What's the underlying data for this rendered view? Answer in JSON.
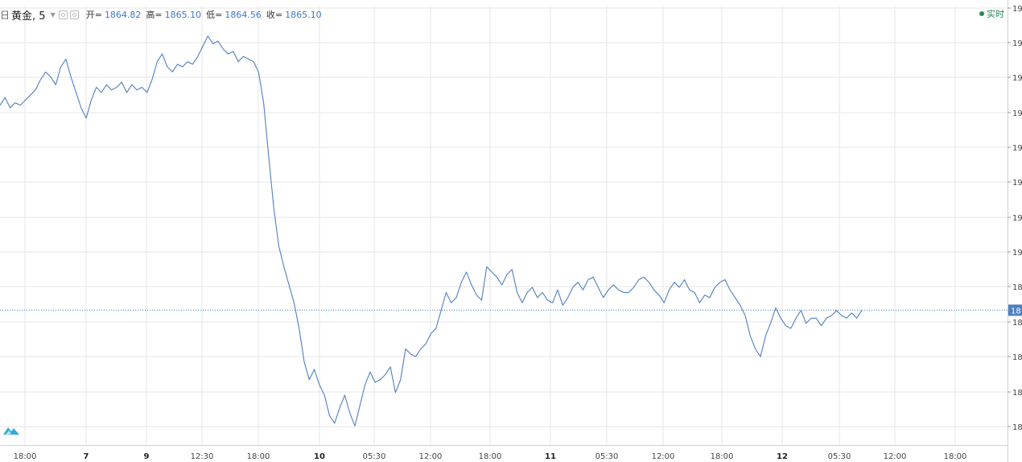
{
  "header": {
    "calendar_icon": "日",
    "symbol": "黄金, 5",
    "open_label": "开=",
    "open_value": "1864.82",
    "high_label": "高=",
    "high_value": "1865.10",
    "low_label": "低=",
    "low_value": "1864.56",
    "close_label": "收=",
    "close_value": "1865.10",
    "realtime_label": "实时"
  },
  "colors": {
    "line": "#4f7fc1",
    "grid": "#e6e6e6",
    "price_line": "#4f7fc1",
    "realtime": "#2a8a55",
    "logo": "#36a9d6"
  },
  "chart_data": {
    "type": "line",
    "x_ticks": [
      "18:00",
      "7",
      "9",
      "12:30",
      "18:00",
      "10",
      "05:30",
      "12:00",
      "18:00",
      "11",
      "05:30",
      "12:00",
      "18:00",
      "12",
      "05:30",
      "12:00",
      "18:00"
    ],
    "bold_ticks": [
      "7",
      "9",
      "10",
      "11",
      "12"
    ],
    "y_axis_tick_labels": [
      "19",
      "19",
      "19",
      "19",
      "19",
      "19",
      "19",
      "19",
      "18",
      "18",
      "18",
      "18",
      "18"
    ],
    "current_price_tag": "18",
    "last_close": 1865.1,
    "series": [
      {
        "values": [
          1945,
          1948,
          1944,
          1946,
          1945,
          1947,
          1949,
          1951,
          1955,
          1958,
          1956,
          1953,
          1960,
          1963,
          1956,
          1950,
          1944,
          1940,
          1947,
          1952,
          1950,
          1953,
          1951,
          1952,
          1954,
          1950,
          1953,
          1951,
          1952,
          1950,
          1955,
          1962,
          1965,
          1960,
          1958,
          1961,
          1960,
          1962,
          1961,
          1964,
          1968,
          1972,
          1969,
          1970,
          1967,
          1965,
          1966,
          1962,
          1964,
          1963,
          1962,
          1958,
          1946,
          1925,
          1905,
          1890,
          1882,
          1875,
          1868,
          1858,
          1845,
          1838,
          1842,
          1836,
          1832,
          1824,
          1821,
          1827,
          1832,
          1825,
          1820,
          1828,
          1836,
          1841,
          1837,
          1838,
          1840,
          1843,
          1833,
          1838,
          1850,
          1848,
          1847,
          1850,
          1852,
          1856,
          1858,
          1865,
          1872,
          1868,
          1870,
          1876,
          1880,
          1875,
          1871,
          1869,
          1882,
          1880,
          1878,
          1875,
          1879,
          1881,
          1872,
          1868,
          1872,
          1874,
          1870,
          1872,
          1869,
          1868,
          1873,
          1867,
          1870,
          1874,
          1876,
          1873,
          1877,
          1878,
          1874,
          1870,
          1873,
          1875,
          1873,
          1872,
          1872,
          1874,
          1877,
          1878,
          1876,
          1873,
          1871,
          1868,
          1873,
          1876,
          1874,
          1877,
          1873,
          1872,
          1868,
          1871,
          1870,
          1874,
          1876,
          1877,
          1873,
          1870,
          1867,
          1863,
          1855,
          1850,
          1847,
          1855,
          1860,
          1866,
          1862,
          1859,
          1858,
          1862,
          1865,
          1860,
          1862,
          1862,
          1859,
          1862,
          1863,
          1865,
          1863,
          1862,
          1864,
          1862,
          1865.1
        ]
      }
    ]
  }
}
